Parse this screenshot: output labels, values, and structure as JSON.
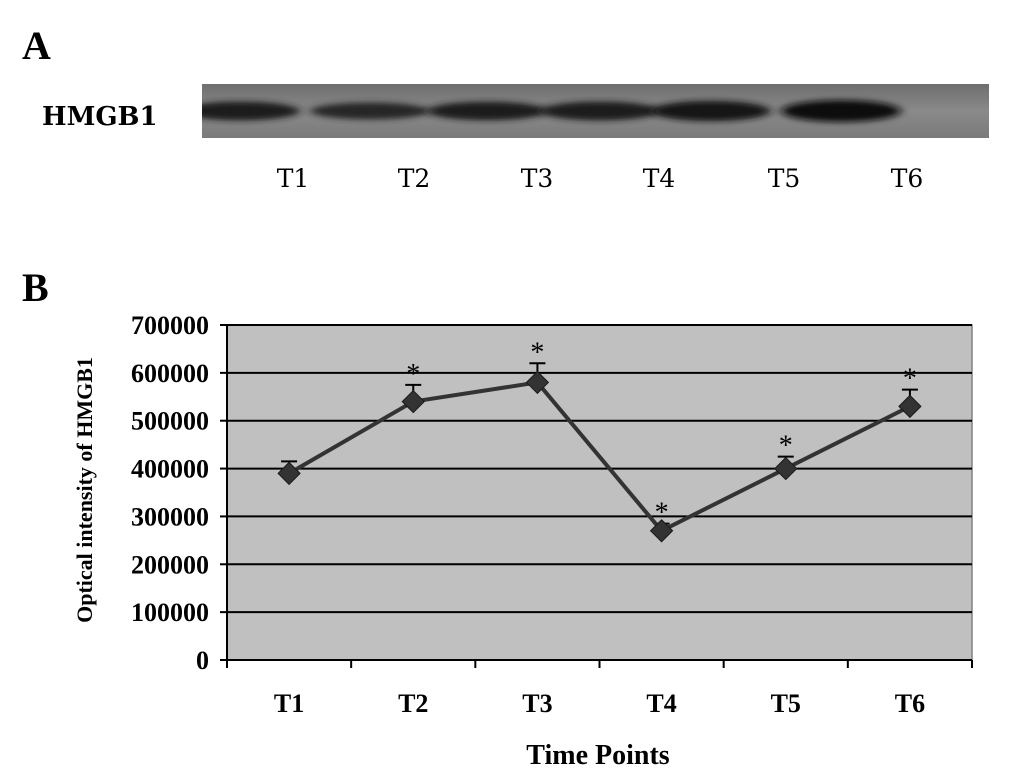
{
  "panel_a": {
    "letter": "A",
    "blot_label": "HMGB1",
    "lane_labels": [
      "T1",
      "T2",
      "T3",
      "T4",
      "T5",
      "T6"
    ],
    "band_intensity_relative": [
      0.7,
      0.5,
      0.68,
      0.7,
      0.85,
      1.0
    ]
  },
  "panel_b": {
    "letter": "B"
  },
  "chart_data": {
    "type": "line",
    "categories": [
      "T1",
      "T2",
      "T3",
      "T4",
      "T5",
      "T6"
    ],
    "series": [
      {
        "values": [
          390000,
          540000,
          580000,
          270000,
          400000,
          530000
        ],
        "error_upper": [
          25000,
          35000,
          40000,
          15000,
          25000,
          35000
        ],
        "significance": [
          "",
          "*",
          "*",
          "*",
          "*",
          "*"
        ],
        "color": "#333333",
        "marker": "diamond"
      }
    ],
    "xlabel": "Time Points",
    "ylabel": "Optical intensity of HMGB1",
    "ylim": [
      0,
      700000
    ],
    "yticks": [
      "0",
      "100000",
      "200000",
      "300000",
      "400000",
      "500000",
      "600000",
      "700000"
    ],
    "grid": true,
    "plot_background": "#c0c0c0"
  }
}
